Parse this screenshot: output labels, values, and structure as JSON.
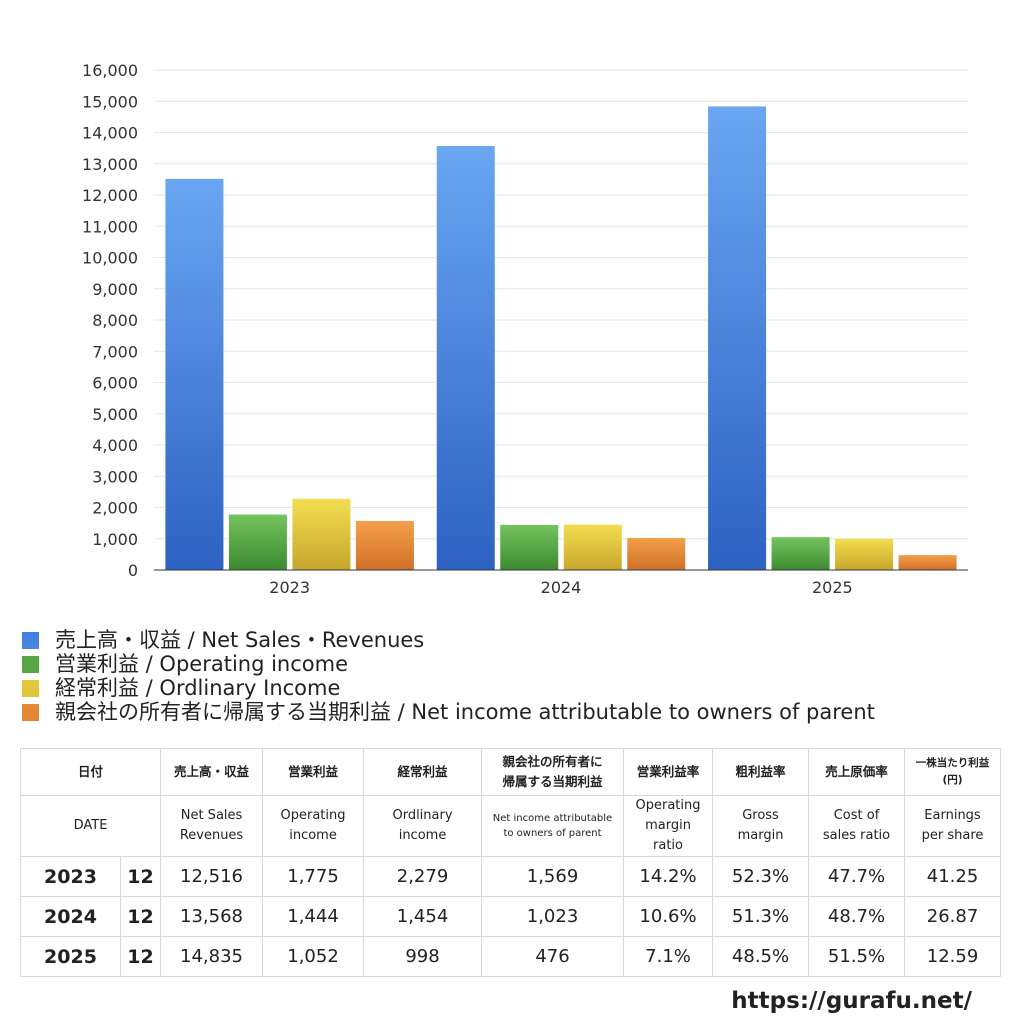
{
  "chart_data": {
    "type": "bar",
    "categories": [
      "2023",
      "2024",
      "2025"
    ],
    "ylim": [
      0,
      16000
    ],
    "ytick_step": 1000,
    "grid": true,
    "legend_position": "bottom",
    "series": [
      {
        "name": "売上高・収益 / Net Sales・Revenues",
        "color": "#3f7fe0",
        "values": [
          12516,
          13568,
          14835
        ]
      },
      {
        "name": "営業利益 / Operating income",
        "color": "#57a845",
        "values": [
          1775,
          1444,
          1052
        ]
      },
      {
        "name": "経常利益 / Ordlinary Income",
        "color": "#e2c93a",
        "values": [
          2279,
          1454,
          998
        ]
      },
      {
        "name": "親会社の所有者に帰属する当期利益 / Net income attributable to owners of parent",
        "color": "#e58a36",
        "values": [
          1569,
          1023,
          476
        ]
      }
    ]
  },
  "table": {
    "header_ja": [
      "日付",
      "売上高・収益",
      "営業利益",
      "経常利益",
      "親会社の所有者に\n帰属する当期利益",
      "営業利益率",
      "粗利益率",
      "売上原価率",
      "一株当たり利益\n(円)"
    ],
    "header_en": [
      "DATE",
      "Net Sales\nRevenues",
      "Operating\nincome",
      "Ordlinary\nincome",
      "Net income attributable\nto owners of parent",
      "Operating\nmargin\nratio",
      "Gross\nmargin",
      "Cost of\nsales ratio",
      "Earnings\nper share"
    ],
    "rows": [
      [
        "2023",
        "12",
        "12,516",
        "1,775",
        "2,279",
        "1,569",
        "14.2%",
        "52.3%",
        "47.7%",
        "41.25"
      ],
      [
        "2024",
        "12",
        "13,568",
        "1,444",
        "1,454",
        "1,023",
        "10.6%",
        "51.3%",
        "48.7%",
        "26.87"
      ],
      [
        "2025",
        "12",
        "14,835",
        "1,052",
        "998",
        "476",
        "7.1%",
        "48.5%",
        "51.5%",
        "12.59"
      ]
    ]
  },
  "footer": {
    "url": "https://gurafu.net/"
  }
}
